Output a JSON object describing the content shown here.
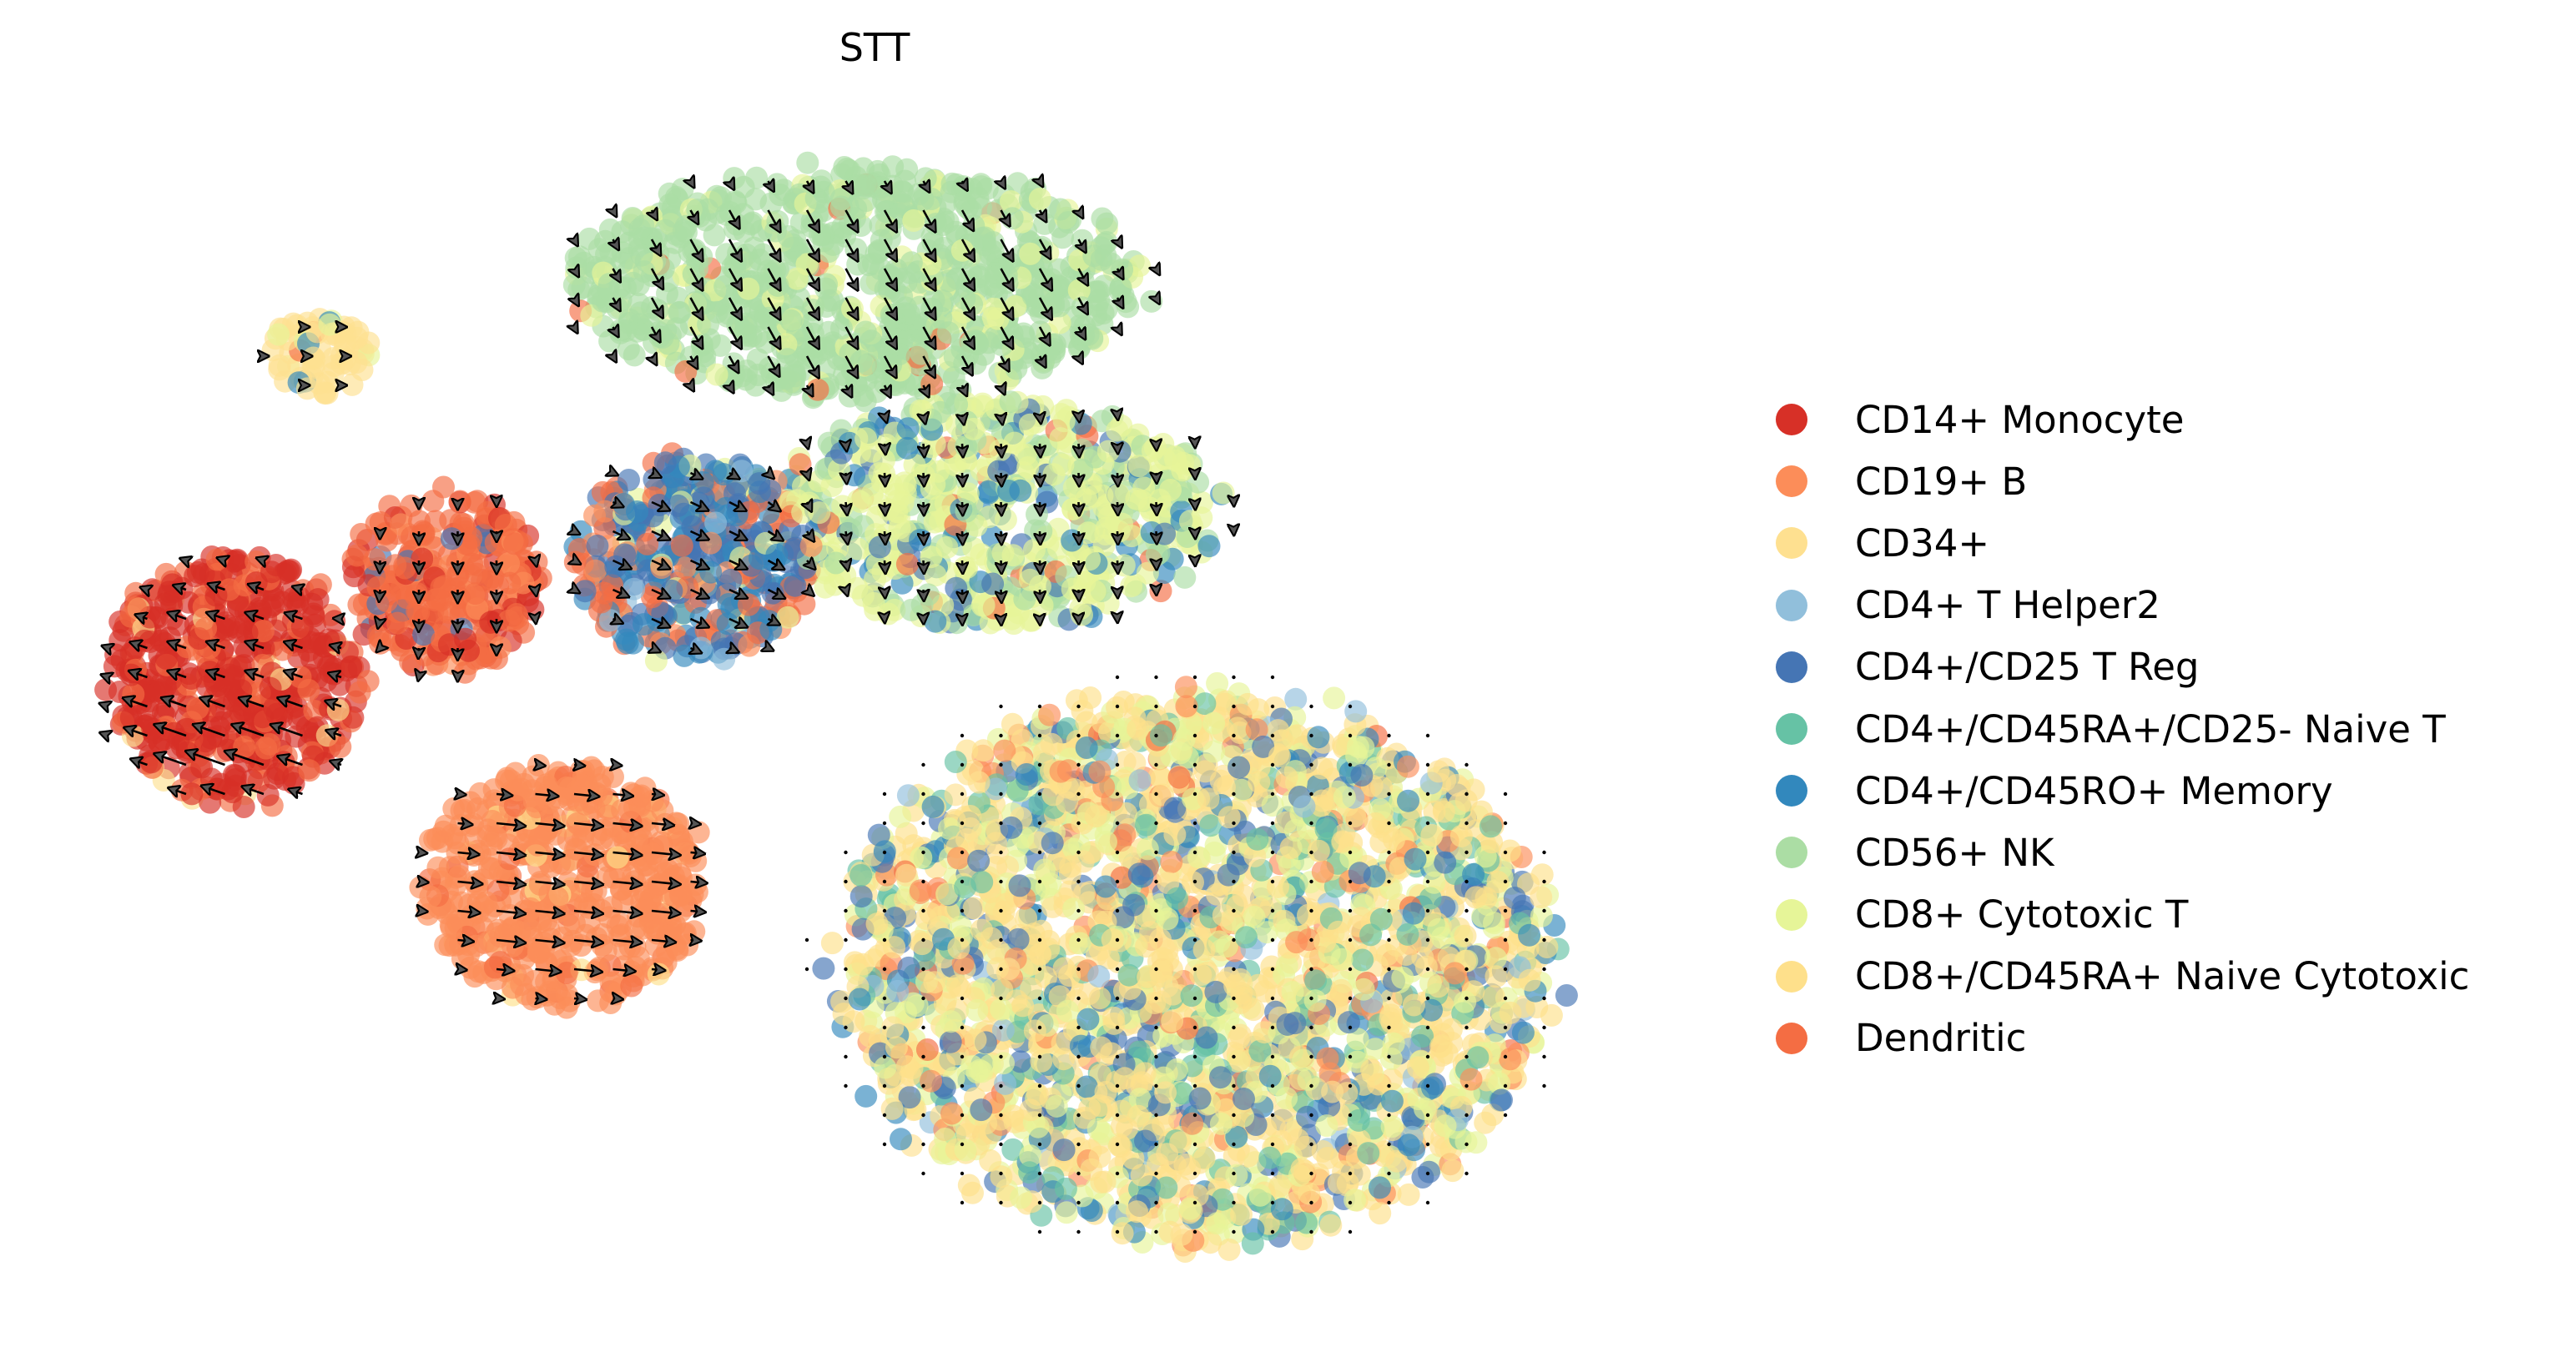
{
  "chart_data": {
    "type": "scatter",
    "subtype": "embedding scatter with velocity stream arrows (quiver grid)",
    "title": "STT",
    "xlabel": "",
    "ylabel": "",
    "axes_visible": false,
    "grid": false,
    "legend_position": "right",
    "xlim": [
      0,
      100
    ],
    "ylim": [
      0,
      100
    ],
    "point_alpha": 0.65,
    "categories": [
      {
        "name": "CD14+ Monocyte",
        "color": "#d73027"
      },
      {
        "name": "CD19+ B",
        "color": "#fc8d59"
      },
      {
        "name": "CD34+",
        "color": "#fee090"
      },
      {
        "name": "CD4+ T Helper2",
        "color": "#91bfdb"
      },
      {
        "name": "CD4+/CD25 T Reg",
        "color": "#4575b4"
      },
      {
        "name": "CD4+/CD45RA+/CD25- Naive T",
        "color": "#66c2a5"
      },
      {
        "name": "CD4+/CD45RO+ Memory",
        "color": "#3288bd"
      },
      {
        "name": "CD56+ NK",
        "color": "#abdda4"
      },
      {
        "name": "CD8+ Cytotoxic T",
        "color": "#e6f598"
      },
      {
        "name": "CD8+/CD45RA+ Naive Cytotoxic",
        "color": "#fee08b"
      },
      {
        "name": "Dendritic",
        "color": "#f46d43"
      }
    ],
    "clusters": [
      {
        "region": "monocyte-lobe",
        "center": [
          11.5,
          53.5
        ],
        "radii": [
          8.2,
          11.0
        ],
        "n": 520,
        "mix": {
          "CD14+ Monocyte": 0.78,
          "Dendritic": 0.2,
          "CD34+": 0.02
        }
      },
      {
        "region": "cd34-tip",
        "center": [
          16.5,
          81.5
        ],
        "radii": [
          3.6,
          3.3
        ],
        "n": 70,
        "mix": {
          "CD34+": 0.85,
          "CD8+ Cytotoxic T": 0.05,
          "CD4+/CD45RO+ Memory": 0.05,
          "Dendritic": 0.05
        }
      },
      {
        "region": "dendritic-band",
        "center": [
          24.5,
          62.0
        ],
        "radii": [
          6.0,
          8.0
        ],
        "n": 300,
        "mix": {
          "Dendritic": 0.7,
          "CD14+ Monocyte": 0.15,
          "CD19+ B": 0.1,
          "CD4+/CD25 T Reg": 0.05
        }
      },
      {
        "region": "b-cell-lobe",
        "center": [
          32.0,
          36.0
        ],
        "radii": [
          9.0,
          10.5
        ],
        "n": 520,
        "mix": {
          "CD19+ B": 0.88,
          "Dendritic": 0.07,
          "CD8+/CD45RA+ Naive Cytotoxic": 0.05
        }
      },
      {
        "region": "treg-memory",
        "center": [
          40.0,
          64.0
        ],
        "radii": [
          7.5,
          9.0
        ],
        "n": 420,
        "mix": {
          "CD4+/CD25 T Reg": 0.3,
          "CD4+/CD45RO+ Memory": 0.25,
          "Dendritic": 0.2,
          "CD8+ Cytotoxic T": 0.1,
          "CD19+ B": 0.1,
          "CD4+ T Helper2": 0.05
        }
      },
      {
        "region": "nk-cap",
        "center": [
          50.0,
          88.0
        ],
        "radii": [
          18.0,
          10.0
        ],
        "n": 900,
        "mix": {
          "CD56+ NK": 0.85,
          "CD8+ Cytotoxic T": 0.13,
          "Dendritic": 0.02
        }
      },
      {
        "region": "cytotoxic-zone",
        "center": [
          59.0,
          68.0
        ],
        "radii": [
          14.0,
          10.0
        ],
        "n": 650,
        "mix": {
          "CD8+ Cytotoxic T": 0.55,
          "CD56+ NK": 0.25,
          "CD4+/CD45RO+ Memory": 0.1,
          "CD4+/CD25 T Reg": 0.07,
          "Dendritic": 0.03
        }
      },
      {
        "region": "naive-mixed-body",
        "center": [
          71.0,
          29.0
        ],
        "radii": [
          22.5,
          24.0
        ],
        "n": 2600,
        "mix": {
          "CD8+/CD45RA+ Naive Cytotoxic": 0.36,
          "CD8+ Cytotoxic T": 0.22,
          "CD34+": 0.08,
          "CD4+/CD25 T Reg": 0.08,
          "CD4+/CD45RO+ Memory": 0.08,
          "CD4+/CD45RA+/CD25- Naive T": 0.09,
          "CD19+ B": 0.06,
          "CD4+ T Helper2": 0.02,
          "Dendritic": 0.01
        }
      }
    ],
    "velocity_field": {
      "description": "Quiver grid of velocity arrows drawn over the cells",
      "grid_columns": 41,
      "grid_rows": 38,
      "regimes": [
        {
          "region": "monocyte-lobe",
          "direction": "left / up-left, strongest at the lower edge",
          "max_magnitude": 1.0
        },
        {
          "region": "dendritic-band",
          "direction": "down",
          "max_magnitude": 0.35
        },
        {
          "region": "b-cell-lobe",
          "direction": "right",
          "max_magnitude": 0.8
        },
        {
          "region": "treg-memory",
          "direction": "right / down-right",
          "max_magnitude": 0.5
        },
        {
          "region": "nk-cap",
          "direction": "down-right",
          "max_magnitude": 0.6
        },
        {
          "region": "cytotoxic-zone",
          "direction": "down",
          "max_magnitude": 0.35
        },
        {
          "region": "naive-mixed-body",
          "direction": "near zero",
          "max_magnitude": 0.08
        }
      ]
    }
  }
}
